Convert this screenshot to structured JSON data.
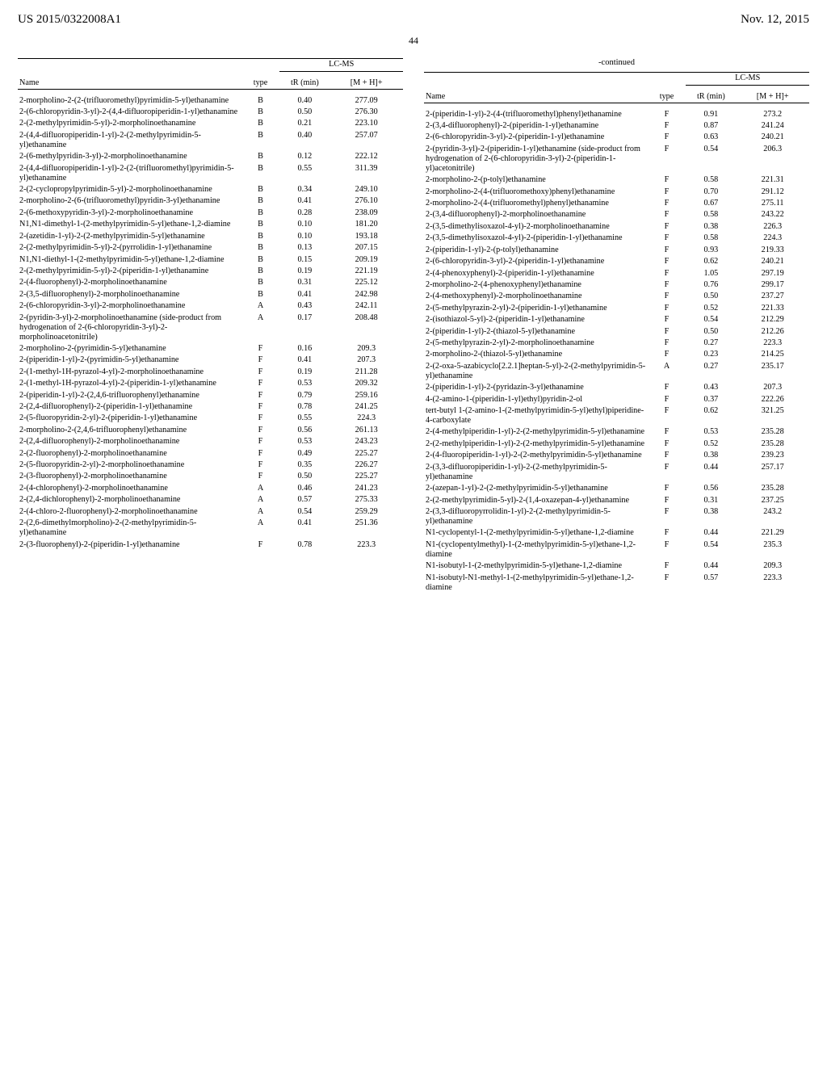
{
  "header": {
    "left": "US 2015/0322008A1",
    "right": "Nov. 12, 2015"
  },
  "page_number": "44",
  "continued_label": "-continued",
  "table_headers": {
    "name": "Name",
    "type": "type",
    "lcms": "LC-MS",
    "tr": "tR (min)",
    "mh": "[M + H]+"
  },
  "left_rows": [
    {
      "n": "2-morpholino-2-(2-(trifluoromethyl)pyrimidin-5-yl)ethanamine",
      "t": "B",
      "tr": "0.40",
      "m": "277.09"
    },
    {
      "n": "2-(6-chloropyridin-3-yl)-2-(4,4-difluoropiperidin-1-yl)ethanamine",
      "t": "B",
      "tr": "0.50",
      "m": "276.30"
    },
    {
      "n": "2-(2-methylpyrimidin-5-yl)-2-morpholinoethanamine",
      "t": "B",
      "tr": "0.21",
      "m": "223.10"
    },
    {
      "n": "2-(4,4-difluoropiperidin-1-yl)-2-(2-methylpyrimidin-5-yl)ethanamine",
      "t": "B",
      "tr": "0.40",
      "m": "257.07"
    },
    {
      "n": "2-(6-methylpyridin-3-yl)-2-morpholinoethanamine",
      "t": "B",
      "tr": "0.12",
      "m": "222.12"
    },
    {
      "n": "2-(4,4-difluoropiperidin-1-yl)-2-(2-(trifluoromethyl)pyrimidin-5-yl)ethanamine",
      "t": "B",
      "tr": "0.55",
      "m": "311.39"
    },
    {
      "n": "2-(2-cyclopropylpyrimidin-5-yl)-2-morpholinoethanamine",
      "t": "B",
      "tr": "0.34",
      "m": "249.10"
    },
    {
      "n": "2-morpholino-2-(6-(trifluoromethyl)pyridin-3-yl)ethanamine",
      "t": "B",
      "tr": "0.41",
      "m": "276.10"
    },
    {
      "n": "2-(6-methoxypyridin-3-yl)-2-morpholinoethanamine",
      "t": "B",
      "tr": "0.28",
      "m": "238.09"
    },
    {
      "n": "N1,N1-dimethyl-1-(2-methylpyrimidin-5-yl)ethane-1,2-diamine",
      "t": "B",
      "tr": "0.10",
      "m": "181.20"
    },
    {
      "n": "2-(azetidin-1-yl)-2-(2-methylpyrimidin-5-yl)ethanamine",
      "t": "B",
      "tr": "0.10",
      "m": "193.18"
    },
    {
      "n": "2-(2-methylpyrimidin-5-yl)-2-(pyrrolidin-1-yl)ethanamine",
      "t": "B",
      "tr": "0.13",
      "m": "207.15"
    },
    {
      "n": "N1,N1-diethyl-1-(2-methylpyrimidin-5-yl)ethane-1,2-diamine",
      "t": "B",
      "tr": "0.15",
      "m": "209.19"
    },
    {
      "n": "2-(2-methylpyrimidin-5-yl)-2-(piperidin-1-yl)ethanamine",
      "t": "B",
      "tr": "0.19",
      "m": "221.19"
    },
    {
      "n": "2-(4-fluorophenyl)-2-morpholinoethanamine",
      "t": "B",
      "tr": "0.31",
      "m": "225.12"
    },
    {
      "n": "2-(3,5-difluorophenyl)-2-morpholinoethanamine",
      "t": "B",
      "tr": "0.41",
      "m": "242.98"
    },
    {
      "n": "2-(6-chloropyridin-3-yl)-2-morpholinoethanamine",
      "t": "A",
      "tr": "0.43",
      "m": "242.11"
    },
    {
      "n": "2-(pyridin-3-yl)-2-morpholinoethanamine (side-product from hydrogenation of 2-(6-chloropyridin-3-yl)-2-morpholinoacetonitrile)",
      "t": "A",
      "tr": "0.17",
      "m": "208.48"
    },
    {
      "n": "2-morpholino-2-(pyrimidin-5-yl)ethanamine",
      "t": "F",
      "tr": "0.16",
      "m": "209.3"
    },
    {
      "n": "2-(piperidin-1-yl)-2-(pyrimidin-5-yl)ethanamine",
      "t": "F",
      "tr": "0.41",
      "m": "207.3"
    },
    {
      "n": "2-(1-methyl-1H-pyrazol-4-yl)-2-morpholinoethanamine",
      "t": "F",
      "tr": "0.19",
      "m": "211.28"
    },
    {
      "n": "2-(1-methyl-1H-pyrazol-4-yl)-2-(piperidin-1-yl)ethanamine",
      "t": "F",
      "tr": "0.53",
      "m": "209.32"
    },
    {
      "n": "2-(piperidin-1-yl)-2-(2,4,6-trifluorophenyl)ethanamine",
      "t": "F",
      "tr": "0.79",
      "m": "259.16"
    },
    {
      "n": "2-(2,4-difluorophenyl)-2-(piperidin-1-yl)ethanamine",
      "t": "F",
      "tr": "0.78",
      "m": "241.25"
    },
    {
      "n": "2-(5-fluoropyridin-2-yl)-2-(piperidin-1-yl)ethanamine",
      "t": "F",
      "tr": "0.55",
      "m": "224.3"
    },
    {
      "n": "2-morpholino-2-(2,4,6-trifluorophenyl)ethanamine",
      "t": "F",
      "tr": "0.56",
      "m": "261.13"
    },
    {
      "n": "2-(2,4-difluorophenyl)-2-morpholinoethanamine",
      "t": "F",
      "tr": "0.53",
      "m": "243.23"
    },
    {
      "n": "2-(2-fluorophenyl)-2-morpholinoethanamine",
      "t": "F",
      "tr": "0.49",
      "m": "225.27"
    },
    {
      "n": "2-(5-fluoropyridin-2-yl)-2-morpholinoethanamine",
      "t": "F",
      "tr": "0.35",
      "m": "226.27"
    },
    {
      "n": "2-(3-fluorophenyl)-2-morpholinoethanamine",
      "t": "F",
      "tr": "0.50",
      "m": "225.27"
    },
    {
      "n": "2-(4-chlorophenyl)-2-morpholinoethanamine",
      "t": "A",
      "tr": "0.46",
      "m": "241.23"
    },
    {
      "n": "2-(2,4-dichlorophenyl)-2-morpholinoethanamine",
      "t": "A",
      "tr": "0.57",
      "m": "275.33"
    },
    {
      "n": "2-(4-chloro-2-fluorophenyl)-2-morpholinoethanamine",
      "t": "A",
      "tr": "0.54",
      "m": "259.29"
    },
    {
      "n": "2-(2,6-dimethylmorpholino)-2-(2-methylpyrimidin-5-yl)ethanamine",
      "t": "A",
      "tr": "0.41",
      "m": "251.36"
    },
    {
      "n": "2-(3-fluorophenyl)-2-(piperidin-1-yl)ethanamine",
      "t": "F",
      "tr": "0.78",
      "m": "223.3"
    }
  ],
  "right_rows": [
    {
      "n": "2-(piperidin-1-yl)-2-(4-(trifluoromethyl)phenyl)ethanamine",
      "t": "F",
      "tr": "0.91",
      "m": "273.2"
    },
    {
      "n": "2-(3,4-difluorophenyl)-2-(piperidin-1-yl)ethanamine",
      "t": "F",
      "tr": "0.87",
      "m": "241.24"
    },
    {
      "n": "2-(6-chloropyridin-3-yl)-2-(piperidin-1-yl)ethanamine",
      "t": "F",
      "tr": "0.63",
      "m": "240.21"
    },
    {
      "n": "2-(pyridin-3-yl)-2-(piperidin-1-yl)ethanamine (side-product from hydrogenation of 2-(6-chloropyridin-3-yl)-2-(piperidin-1-yl)acetonitrile)",
      "t": "F",
      "tr": "0.54",
      "m": "206.3"
    },
    {
      "n": "2-morpholino-2-(p-tolyl)ethanamine",
      "t": "F",
      "tr": "0.58",
      "m": "221.31"
    },
    {
      "n": "2-morpholino-2-(4-(trifluoromethoxy)phenyl)ethanamine",
      "t": "F",
      "tr": "0.70",
      "m": "291.12"
    },
    {
      "n": "2-morpholino-2-(4-(trifluoromethyl)phenyl)ethanamine",
      "t": "F",
      "tr": "0.67",
      "m": "275.11"
    },
    {
      "n": "2-(3,4-difluorophenyl)-2-morpholinoethanamine",
      "t": "F",
      "tr": "0.58",
      "m": "243.22"
    },
    {
      "n": "2-(3,5-dimethylisoxazol-4-yl)-2-morpholinoethanamine",
      "t": "F",
      "tr": "0.38",
      "m": "226.3"
    },
    {
      "n": "2-(3,5-dimethylisoxazol-4-yl)-2-(piperidin-1-yl)ethanamine",
      "t": "F",
      "tr": "0.58",
      "m": "224.3"
    },
    {
      "n": "2-(piperidin-1-yl)-2-(p-tolyl)ethanamine",
      "t": "F",
      "tr": "0.93",
      "m": "219.33"
    },
    {
      "n": "2-(6-chloropyridin-3-yl)-2-(piperidin-1-yl)ethanamine",
      "t": "F",
      "tr": "0.62",
      "m": "240.21"
    },
    {
      "n": "2-(4-phenoxyphenyl)-2-(piperidin-1-yl)ethanamine",
      "t": "F",
      "tr": "1.05",
      "m": "297.19"
    },
    {
      "n": "2-morpholino-2-(4-phenoxyphenyl)ethanamine",
      "t": "F",
      "tr": "0.76",
      "m": "299.17"
    },
    {
      "n": "2-(4-methoxyphenyl)-2-morpholinoethanamine",
      "t": "F",
      "tr": "0.50",
      "m": "237.27"
    },
    {
      "n": "2-(5-methylpyrazin-2-yl)-2-(piperidin-1-yl)ethanamine",
      "t": "F",
      "tr": "0.52",
      "m": "221.33"
    },
    {
      "n": "2-(isothiazol-5-yl)-2-(piperidin-1-yl)ethanamine",
      "t": "F",
      "tr": "0.54",
      "m": "212.29"
    },
    {
      "n": "2-(piperidin-1-yl)-2-(thiazol-5-yl)ethanamine",
      "t": "F",
      "tr": "0.50",
      "m": "212.26"
    },
    {
      "n": "2-(5-methylpyrazin-2-yl)-2-morpholinoethanamine",
      "t": "F",
      "tr": "0.27",
      "m": "223.3"
    },
    {
      "n": "2-morpholino-2-(thiazol-5-yl)ethanamine",
      "t": "F",
      "tr": "0.23",
      "m": "214.25"
    },
    {
      "n": "2-(2-oxa-5-azabicyclo[2.2.1]heptan-5-yl)-2-(2-methylpyrimidin-5-yl)ethanamine",
      "t": "A",
      "tr": "0.27",
      "m": "235.17"
    },
    {
      "n": "2-(piperidin-1-yl)-2-(pyridazin-3-yl)ethanamine",
      "t": "F",
      "tr": "0.43",
      "m": "207.3"
    },
    {
      "n": "4-(2-amino-1-(piperidin-1-yl)ethyl)pyridin-2-ol",
      "t": "F",
      "tr": "0.37",
      "m": "222.26"
    },
    {
      "n": "tert-butyl 1-(2-amino-1-(2-methylpyrimidin-5-yl)ethyl)piperidine-4-carboxylate",
      "t": "F",
      "tr": "0.62",
      "m": "321.25"
    },
    {
      "n": "2-(4-methylpiperidin-1-yl)-2-(2-methylpyrimidin-5-yl)ethanamine",
      "t": "F",
      "tr": "0.53",
      "m": "235.28"
    },
    {
      "n": "2-(2-methylpiperidin-1-yl)-2-(2-methylpyrimidin-5-yl)ethanamine",
      "t": "F",
      "tr": "0.52",
      "m": "235.28"
    },
    {
      "n": "2-(4-fluoropiperidin-1-yl)-2-(2-methylpyrimidin-5-yl)ethanamine",
      "t": "F",
      "tr": "0.38",
      "m": "239.23"
    },
    {
      "n": "2-(3,3-difluoropiperidin-1-yl)-2-(2-methylpyrimidin-5-yl)ethanamine",
      "t": "F",
      "tr": "0.44",
      "m": "257.17"
    },
    {
      "n": "2-(azepan-1-yl)-2-(2-methylpyrimidin-5-yl)ethanamine",
      "t": "F",
      "tr": "0.56",
      "m": "235.28"
    },
    {
      "n": "2-(2-methylpyrimidin-5-yl)-2-(1,4-oxazepan-4-yl)ethanamine",
      "t": "F",
      "tr": "0.31",
      "m": "237.25"
    },
    {
      "n": "2-(3,3-difluoropyrrolidin-1-yl)-2-(2-methylpyrimidin-5-yl)ethanamine",
      "t": "F",
      "tr": "0.38",
      "m": "243.2"
    },
    {
      "n": "N1-cyclopentyl-1-(2-methylpyrimidin-5-yl)ethane-1,2-diamine",
      "t": "F",
      "tr": "0.44",
      "m": "221.29"
    },
    {
      "n": "N1-(cyclopentylmethyl)-1-(2-methylpyrimidin-5-yl)ethane-1,2-diamine",
      "t": "F",
      "tr": "0.54",
      "m": "235.3"
    },
    {
      "n": "N1-isobutyl-1-(2-methylpyrimidin-5-yl)ethane-1,2-diamine",
      "t": "F",
      "tr": "0.44",
      "m": "209.3"
    },
    {
      "n": "N1-isobutyl-N1-methyl-1-(2-methylpyrimidin-5-yl)ethane-1,2-diamine",
      "t": "F",
      "tr": "0.57",
      "m": "223.3"
    }
  ]
}
